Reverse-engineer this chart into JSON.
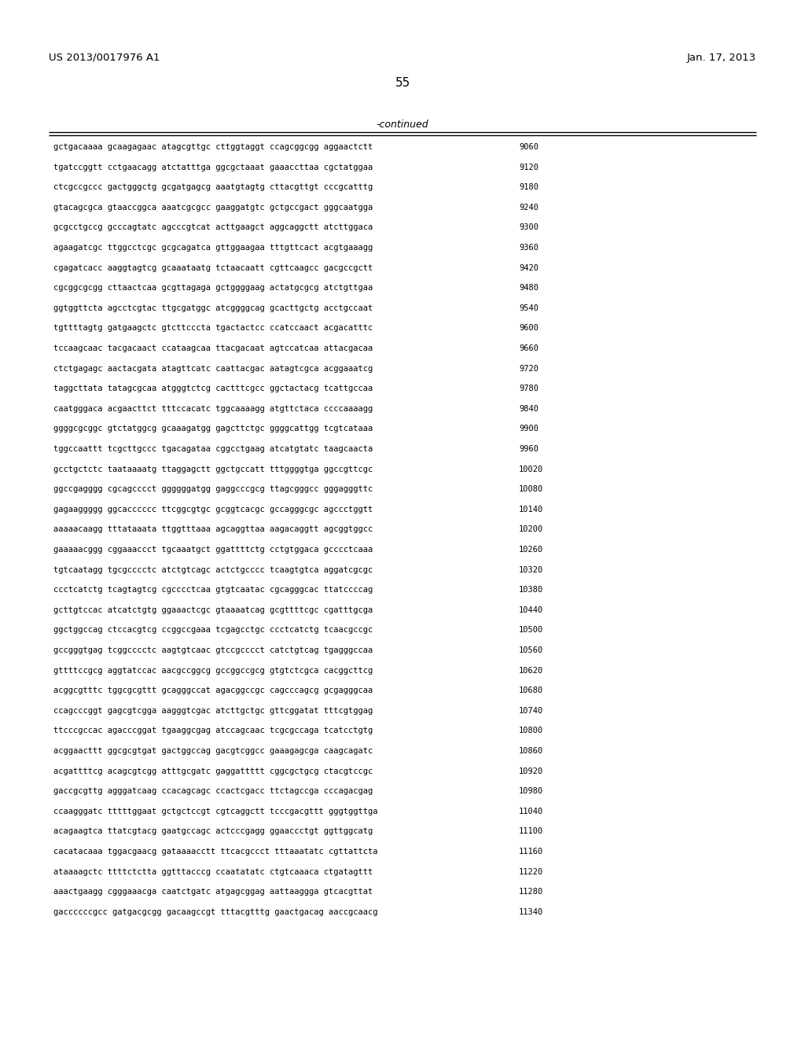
{
  "header_left": "US 2013/0017976 A1",
  "header_right": "Jan. 17, 2013",
  "page_number": "55",
  "continued_label": "-continued",
  "background_color": "#ffffff",
  "text_color": "#000000",
  "sequences": [
    [
      "gctgacaaaa gcaagagaac atagcgttgc cttggtaggt ccagcggcgg aggaactctt",
      "9060"
    ],
    [
      "tgatccggtt cctgaacagg atctatttga ggcgctaaat gaaaccttaa cgctatggaa",
      "9120"
    ],
    [
      "ctcgccgccc gactgggctg gcgatgagcg aaatgtagtg cttacgttgt cccgcatttg",
      "9180"
    ],
    [
      "gtacagcgca gtaaccggca aaatcgcgcc gaaggatgtc gctgccgact gggcaatgga",
      "9240"
    ],
    [
      "gcgcctgccg gcccagtatc agcccgtcat acttgaagct aggcaggctt atcttggaca",
      "9300"
    ],
    [
      "agaagatcgc ttggcctcgc gcgcagatca gttggaagaa tttgttcact acgtgaaagg",
      "9360"
    ],
    [
      "cgagatcacc aaggtagtcg gcaaataatg tctaacaatt cgttcaagcc gacgccgctt",
      "9420"
    ],
    [
      "cgcggcgcgg cttaactcaa gcgttagaga gctggggaag actatgcgcg atctgttgaa",
      "9480"
    ],
    [
      "ggtggttcta agcctcgtac ttgcgatggc atcggggcag gcacttgctg acctgccaat",
      "9540"
    ],
    [
      "tgttttagtg gatgaagctc gtcttcccta tgactactcc ccatccaact acgacatttc",
      "9600"
    ],
    [
      "tccaagcaac tacgacaact ccataagcaa ttacgacaat agtccatcaa attacgacaa",
      "9660"
    ],
    [
      "ctctgagagc aactacgata atagttcatc caattacgac aatagtcgca acggaaatcg",
      "9720"
    ],
    [
      "taggcttata tatagcgcaa atgggtctcg cactttcgcc ggctactacg tcattgccaa",
      "9780"
    ],
    [
      "caatgggaca acgaacttct tttccacatc tggcaaaagg atgttctaca ccccaaaagg",
      "9840"
    ],
    [
      "ggggcgcggc gtctatggcg gcaaagatgg gagcttctgc ggggcattgg tcgtcataaa",
      "9900"
    ],
    [
      "tggccaattt tcgcttgccc tgacagataa cggcctgaag atcatgtatc taagcaacta",
      "9960"
    ],
    [
      "gcctgctctc taataaaatg ttaggagctt ggctgccatt tttggggtga ggccgttcgc",
      "10020"
    ],
    [
      "ggccgagggg cgcagcccct ggggggatgg gaggcccgcg ttagcgggcc gggagggttc",
      "10080"
    ],
    [
      "gagaaggggg ggcacccccc ttcggcgtgc gcggtcacgc gccagggcgc agccctggtt",
      "10140"
    ],
    [
      "aaaaacaagg tttataaata ttggtttaaa agcaggttaa aagacaggtt agcggtggcc",
      "10200"
    ],
    [
      "gaaaaacggg cggaaaccct tgcaaatgct ggattttctg cctgtggaca gcccctcaaa",
      "10260"
    ],
    [
      "tgtcaatagg tgcgcccctc atctgtcagc actctgcccc tcaagtgtca aggatcgcgc",
      "10320"
    ],
    [
      "ccctcatctg tcagtagtcg cgcccctcaa gtgtcaatac cgcagggcac ttatccccag",
      "10380"
    ],
    [
      "gcttgtccac atcatctgtg ggaaactcgc gtaaaatcag gcgttttcgc cgatttgcga",
      "10440"
    ],
    [
      "ggctggccag ctccacgtcg ccggccgaaa tcgagcctgc ccctcatctg tcaacgccgc",
      "10500"
    ],
    [
      "gccgggtgag tcggcccctc aagtgtcaac gtccgcccct catctgtcag tgagggccaa",
      "10560"
    ],
    [
      "gttttccgcg aggtatccac aacgccggcg gccggccgcg gtgtctcgca cacggcttcg",
      "10620"
    ],
    [
      "acggcgtttc tggcgcgttt gcagggccat agacggccgc cagcccagcg gcgagggcaa",
      "10680"
    ],
    [
      "ccagcccggt gagcgtcgga aagggtcgac atcttgctgc gttcggatat tttcgtggag",
      "10740"
    ],
    [
      "ttcccgccac agacccggat tgaaggcgag atccagcaac tcgcgccaga tcatcctgtg",
      "10800"
    ],
    [
      "acggaacttt ggcgcgtgat gactggccag gacgtcggcc gaaagagcga caagcagatc",
      "10860"
    ],
    [
      "acgattttcg acagcgtcgg atttgcgatc gaggattttt cggcgctgcg ctacgtccgc",
      "10920"
    ],
    [
      "gaccgcgttg agggatcaag ccacagcagc ccactcgacc ttctagccga cccagacgag",
      "10980"
    ],
    [
      "ccaagggatc tttttggaat gctgctccgt cgtcaggctt tcccgacgttt gggtggttga",
      "11040"
    ],
    [
      "acagaagtca ttatcgtacg gaatgccagc actcccgagg ggaaccctgt ggttggcatg",
      "11100"
    ],
    [
      "cacatacaaa tggacgaacg gataaaacctt ttcacgccct tttaaatatc cgttattcta",
      "11160"
    ],
    [
      "ataaaagctc ttttctctta ggtttacccg ccaatatatc ctgtcaaaca ctgatagttt",
      "11220"
    ],
    [
      "aaactgaagg cgggaaacga caatctgatc atgagcggag aattaaggga gtcacgttat",
      "11280"
    ],
    [
      "gaccccccgcc gatgacgcgg gacaagccgt tttacgtttg gaactgacag aaccgcaacg",
      "11340"
    ]
  ]
}
